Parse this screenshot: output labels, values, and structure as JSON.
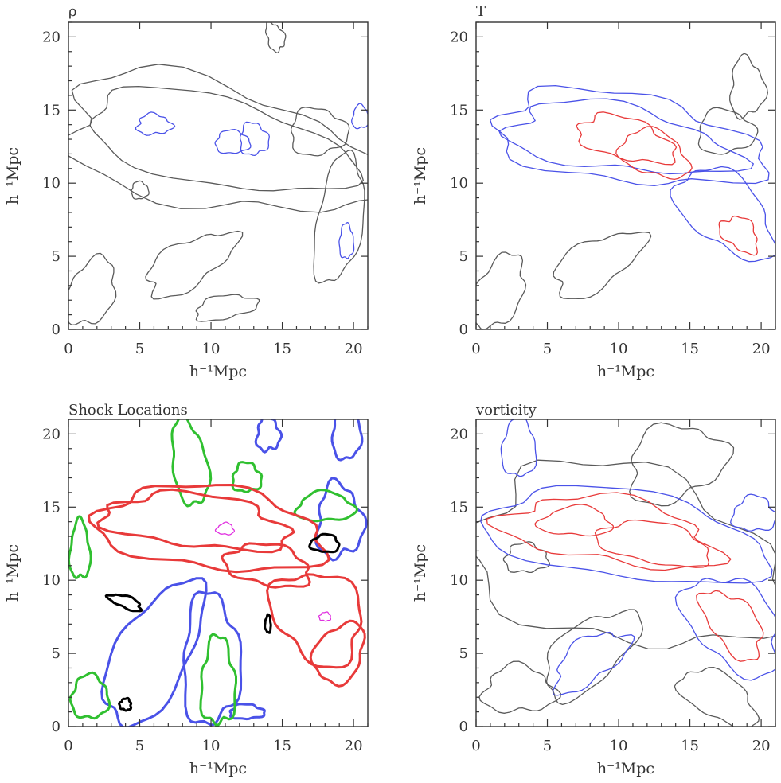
{
  "chart_data": [
    {
      "type": "contour",
      "title": "ρ",
      "xlabel": "h⁻¹Mpc",
      "ylabel": "h⁻¹Mpc",
      "xlim": [
        0,
        21
      ],
      "ylim": [
        0,
        21
      ],
      "xticks": [
        0,
        5,
        10,
        15,
        20
      ],
      "yticks": [
        0,
        5,
        10,
        15,
        20
      ],
      "colors": {
        "primary": "#5a5a5a",
        "secondary": "#4a52e8"
      },
      "levels": [
        {
          "color": "#5a5a5a",
          "contours": [
            {
              "cx": 10.5,
              "cy": 12.5,
              "rx": 11.5,
              "ry": 4.2,
              "rot": -12
            },
            {
              "cx": 10.5,
              "cy": 12.8,
              "rx": 9.5,
              "ry": 3.0,
              "rot": -12
            },
            {
              "cx": 17.5,
              "cy": 13.5,
              "rx": 2.0,
              "ry": 1.6,
              "rot": 0
            },
            {
              "cx": 8.5,
              "cy": 4.5,
              "rx": 3.5,
              "ry": 1.5,
              "rot": 30
            },
            {
              "cx": 19.0,
              "cy": 7.5,
              "rx": 1.6,
              "ry": 4.5,
              "rot": -10
            },
            {
              "cx": 1.5,
              "cy": 2.5,
              "rx": 1.6,
              "ry": 2.5,
              "rot": -30
            },
            {
              "cx": 14.5,
              "cy": 20.0,
              "rx": 0.6,
              "ry": 1.0,
              "rot": 20
            },
            {
              "cx": 5.0,
              "cy": 9.5,
              "rx": 0.6,
              "ry": 0.6,
              "rot": 0
            },
            {
              "cx": 11.0,
              "cy": 1.5,
              "rx": 2.2,
              "ry": 0.8,
              "rot": 10
            }
          ]
        },
        {
          "color": "#4a52e8",
          "contours": [
            {
              "cx": 6.0,
              "cy": 14.0,
              "rx": 1.2,
              "ry": 0.7,
              "rot": 0
            },
            {
              "cx": 11.5,
              "cy": 12.8,
              "rx": 1.2,
              "ry": 0.8,
              "rot": 0
            },
            {
              "cx": 13.0,
              "cy": 13.0,
              "rx": 1.0,
              "ry": 1.1,
              "rot": 10
            },
            {
              "cx": 20.5,
              "cy": 14.5,
              "rx": 0.6,
              "ry": 0.8,
              "rot": 0
            },
            {
              "cx": 19.5,
              "cy": 6.0,
              "rx": 0.5,
              "ry": 1.2,
              "rot": 0
            }
          ]
        }
      ]
    },
    {
      "type": "contour",
      "title": "T",
      "xlabel": "h⁻¹Mpc",
      "ylabel": "h⁻¹Mpc",
      "xlim": [
        0,
        21
      ],
      "ylim": [
        0,
        21
      ],
      "xticks": [
        0,
        5,
        10,
        15,
        20
      ],
      "yticks": [
        0,
        5,
        10,
        15,
        20
      ],
      "colors": {
        "primary": "#4a52e8",
        "secondary": "#e83a3a",
        "tertiary": "#5a5a5a"
      },
      "levels": [
        {
          "color": "#5a5a5a",
          "contours": [
            {
              "cx": 8.5,
              "cy": 4.5,
              "rx": 3.5,
              "ry": 1.6,
              "rot": 30
            },
            {
              "cx": 1.5,
              "cy": 2.5,
              "rx": 1.6,
              "ry": 2.8,
              "rot": -30
            },
            {
              "cx": 17.5,
              "cy": 13.5,
              "rx": 2.0,
              "ry": 1.5,
              "rot": 0
            },
            {
              "cx": 19.0,
              "cy": 16.5,
              "rx": 1.2,
              "ry": 2.0,
              "rot": 0
            }
          ]
        },
        {
          "color": "#4a52e8",
          "contours": [
            {
              "cx": 10.5,
              "cy": 13.0,
              "rx": 9.5,
              "ry": 3.0,
              "rot": -8
            },
            {
              "cx": 17.5,
              "cy": 8.0,
              "rx": 4.0,
              "ry": 2.3,
              "rot": -40
            },
            {
              "cx": 10.0,
              "cy": 13.0,
              "rx": 8.0,
              "ry": 2.2,
              "rot": -8
            }
          ]
        },
        {
          "color": "#e83a3a",
          "contours": [
            {
              "cx": 10.5,
              "cy": 13.0,
              "rx": 3.5,
              "ry": 1.4,
              "rot": -15
            },
            {
              "cx": 12.5,
              "cy": 12.0,
              "rx": 2.5,
              "ry": 1.5,
              "rot": -20
            },
            {
              "cx": 18.5,
              "cy": 6.5,
              "rx": 1.5,
              "ry": 1.0,
              "rot": -40
            }
          ]
        }
      ]
    },
    {
      "type": "contour",
      "title": "Shock Locations",
      "xlabel": "h⁻¹Mpc",
      "ylabel": "h⁻¹Mpc",
      "xlim": [
        0,
        21
      ],
      "ylim": [
        0,
        21
      ],
      "xticks": [
        0,
        5,
        10,
        15,
        20
      ],
      "yticks": [
        0,
        5,
        10,
        15,
        20
      ],
      "colors": {
        "primary": "#e83a3a",
        "secondary": "#4a52e8",
        "tertiary": "#30c030",
        "quaternary": "#000000",
        "accent": "#e030e0"
      },
      "levels": [
        {
          "color": "#4a52e8",
          "contours": [
            {
              "cx": 6.0,
              "cy": 5.0,
              "rx": 5.5,
              "ry": 2.5,
              "rot": 60
            },
            {
              "cx": 10.0,
              "cy": 4.5,
              "rx": 2.0,
              "ry": 4.5,
              "rot": 0
            },
            {
              "cx": 19.0,
              "cy": 14.0,
              "rx": 1.6,
              "ry": 2.5,
              "rot": 0
            },
            {
              "cx": 19.5,
              "cy": 20.0,
              "rx": 1.0,
              "ry": 1.8,
              "rot": 0
            },
            {
              "cx": 12.5,
              "cy": 1.0,
              "rx": 1.2,
              "ry": 0.5,
              "rot": 0
            },
            {
              "cx": 14.0,
              "cy": 20.0,
              "rx": 0.8,
              "ry": 1.2,
              "rot": 0
            }
          ]
        },
        {
          "color": "#30c030",
          "contours": [
            {
              "cx": 8.5,
              "cy": 18.0,
              "rx": 1.2,
              "ry": 3.0,
              "rot": 10
            },
            {
              "cx": 12.5,
              "cy": 17.0,
              "rx": 1.0,
              "ry": 1.0,
              "rot": 0
            },
            {
              "cx": 18.0,
              "cy": 15.0,
              "rx": 2.0,
              "ry": 1.0,
              "rot": 0
            },
            {
              "cx": 1.5,
              "cy": 2.0,
              "rx": 1.3,
              "ry": 1.5,
              "rot": 0
            },
            {
              "cx": 10.5,
              "cy": 3.0,
              "rx": 1.2,
              "ry": 3.0,
              "rot": 0
            },
            {
              "cx": 0.8,
              "cy": 12.0,
              "rx": 0.7,
              "ry": 2.0,
              "rot": 0
            }
          ]
        },
        {
          "color": "#e83a3a",
          "contours": [
            {
              "cx": 10.0,
              "cy": 13.5,
              "rx": 8.0,
              "ry": 2.8,
              "rot": -6
            },
            {
              "cx": 9.0,
              "cy": 14.0,
              "rx": 6.5,
              "ry": 1.8,
              "rot": -6
            },
            {
              "cx": 17.5,
              "cy": 7.5,
              "rx": 3.5,
              "ry": 2.8,
              "rot": -45
            },
            {
              "cx": 14.0,
              "cy": 11.0,
              "rx": 3.0,
              "ry": 1.4,
              "rot": -10
            },
            {
              "cx": 19.0,
              "cy": 5.0,
              "rx": 1.6,
              "ry": 2.2,
              "rot": -30
            }
          ]
        },
        {
          "color": "#e030e0",
          "contours": [
            {
              "cx": 11.0,
              "cy": 13.5,
              "rx": 0.6,
              "ry": 0.4,
              "rot": 0
            },
            {
              "cx": 18.0,
              "cy": 7.5,
              "rx": 0.4,
              "ry": 0.3,
              "rot": 0
            }
          ]
        },
        {
          "color": "#000000",
          "contours": [
            {
              "cx": 18.0,
              "cy": 12.5,
              "rx": 1.0,
              "ry": 0.6,
              "rot": 0
            },
            {
              "cx": 4.0,
              "cy": 8.5,
              "rx": 1.2,
              "ry": 0.4,
              "rot": -20
            },
            {
              "cx": 4.0,
              "cy": 1.5,
              "rx": 0.4,
              "ry": 0.4,
              "rot": 0
            },
            {
              "cx": 14.0,
              "cy": 7.0,
              "rx": 0.2,
              "ry": 0.6,
              "rot": 0
            }
          ]
        }
      ]
    },
    {
      "type": "contour",
      "title": "vorticity",
      "xlabel": "h⁻¹Mpc",
      "ylabel": "h⁻¹Mpc",
      "xlim": [
        0,
        21
      ],
      "ylim": [
        0,
        21
      ],
      "xticks": [
        0,
        5,
        10,
        15,
        20
      ],
      "yticks": [
        0,
        5,
        10,
        15,
        20
      ],
      "colors": {
        "primary": "#4a52e8",
        "secondary": "#e83a3a",
        "tertiary": "#5a5a5a"
      },
      "levels": [
        {
          "color": "#5a5a5a",
          "contours": [
            {
              "cx": 10.5,
              "cy": 11.5,
              "rx": 11.0,
              "ry": 6.0,
              "rot": -12
            },
            {
              "cx": 8.0,
              "cy": 5.0,
              "rx": 4.0,
              "ry": 2.0,
              "rot": 40
            },
            {
              "cx": 14.0,
              "cy": 18.0,
              "rx": 3.5,
              "ry": 2.5,
              "rot": 20
            },
            {
              "cx": 3.5,
              "cy": 11.5,
              "rx": 1.5,
              "ry": 1.0,
              "rot": 0
            },
            {
              "cx": 17.0,
              "cy": 2.0,
              "rx": 3.0,
              "ry": 1.5,
              "rot": -30
            },
            {
              "cx": 3.0,
              "cy": 2.5,
              "rx": 2.5,
              "ry": 1.6,
              "rot": 0
            }
          ]
        },
        {
          "color": "#4a52e8",
          "contours": [
            {
              "cx": 10.5,
              "cy": 13.0,
              "rx": 10.0,
              "ry": 3.0,
              "rot": -8
            },
            {
              "cx": 18.0,
              "cy": 7.0,
              "rx": 4.0,
              "ry": 2.6,
              "rot": -45
            },
            {
              "cx": 8.0,
              "cy": 4.5,
              "rx": 3.0,
              "ry": 1.4,
              "rot": 35
            },
            {
              "cx": 3.0,
              "cy": 19.0,
              "rx": 1.2,
              "ry": 2.0,
              "rot": 0
            },
            {
              "cx": 19.5,
              "cy": 14.5,
              "rx": 1.5,
              "ry": 1.2,
              "rot": 0
            }
          ]
        },
        {
          "color": "#e83a3a",
          "contours": [
            {
              "cx": 9.5,
              "cy": 13.3,
              "rx": 7.5,
              "ry": 2.2,
              "rot": -8
            },
            {
              "cx": 12.5,
              "cy": 12.5,
              "rx": 4.0,
              "ry": 1.4,
              "rot": -10
            },
            {
              "cx": 18.0,
              "cy": 7.0,
              "rx": 2.8,
              "ry": 1.5,
              "rot": -50
            },
            {
              "cx": 7.0,
              "cy": 14.0,
              "rx": 2.5,
              "ry": 1.0,
              "rot": 0
            }
          ]
        }
      ]
    }
  ]
}
